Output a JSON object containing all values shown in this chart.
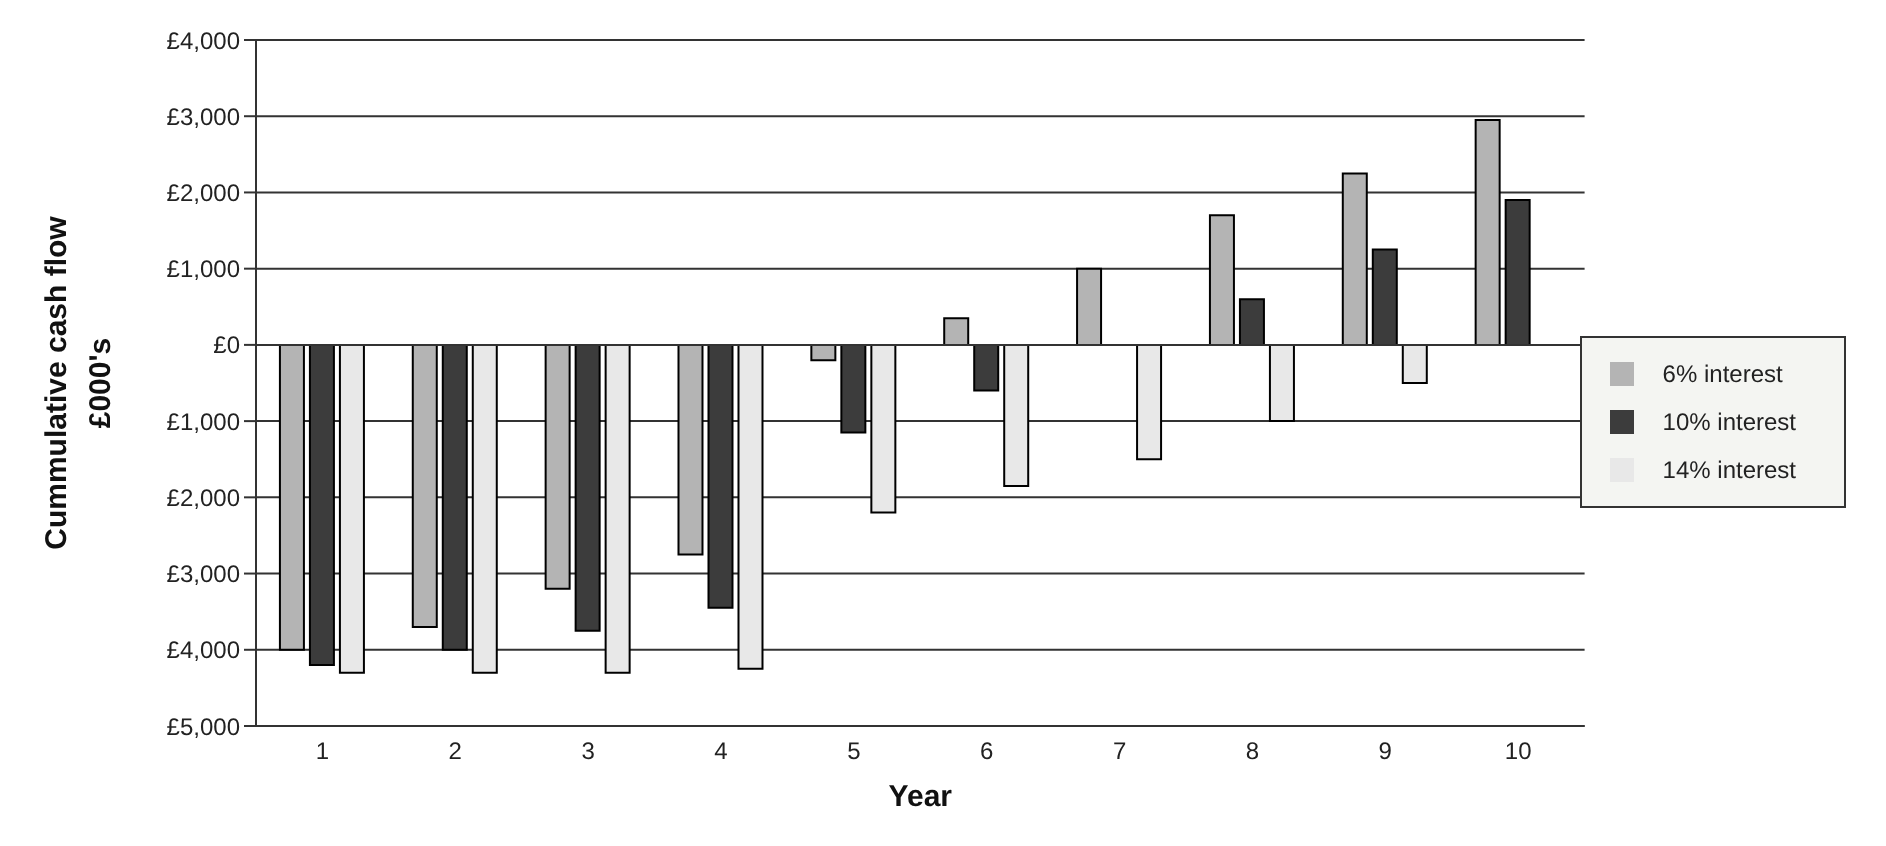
{
  "chart_data": {
    "type": "bar",
    "xlabel": "Year",
    "ylabel": "Cummulative cash flow\n£000's",
    "categories": [
      "1",
      "2",
      "3",
      "4",
      "5",
      "6",
      "7",
      "8",
      "9",
      "10"
    ],
    "series": [
      {
        "name": "6% interest",
        "color": "#b4b4b4",
        "values": [
          -4000,
          -3700,
          -3200,
          -2750,
          -200,
          350,
          1000,
          1700,
          2250,
          2950
        ]
      },
      {
        "name": "10% interest",
        "color": "#3c3c3c",
        "values": [
          -4200,
          -4000,
          -3750,
          -3450,
          -1150,
          -600,
          0,
          600,
          1250,
          1900
        ]
      },
      {
        "name": "14% interest",
        "color": "#e8e8e8",
        "values": [
          -4300,
          -4300,
          -4300,
          -4250,
          -2200,
          -1850,
          -1500,
          -1000,
          -500,
          0
        ]
      }
    ],
    "ylim": [
      -5000,
      4000
    ],
    "yticks": [
      {
        "value": 4000,
        "label": "£4,000"
      },
      {
        "value": 3000,
        "label": "£3,000"
      },
      {
        "value": 2000,
        "label": "£2,000"
      },
      {
        "value": 1000,
        "label": "£1,000"
      },
      {
        "value": 0,
        "label": "£0"
      },
      {
        "value": -1000,
        "label": "£1,000"
      },
      {
        "value": -2000,
        "label": "£2,000"
      },
      {
        "value": -3000,
        "label": "£3,000"
      },
      {
        "value": -4000,
        "label": "£4,000"
      },
      {
        "value": -5000,
        "label": "£5,000"
      }
    ],
    "grid": "y",
    "legend": "right"
  }
}
